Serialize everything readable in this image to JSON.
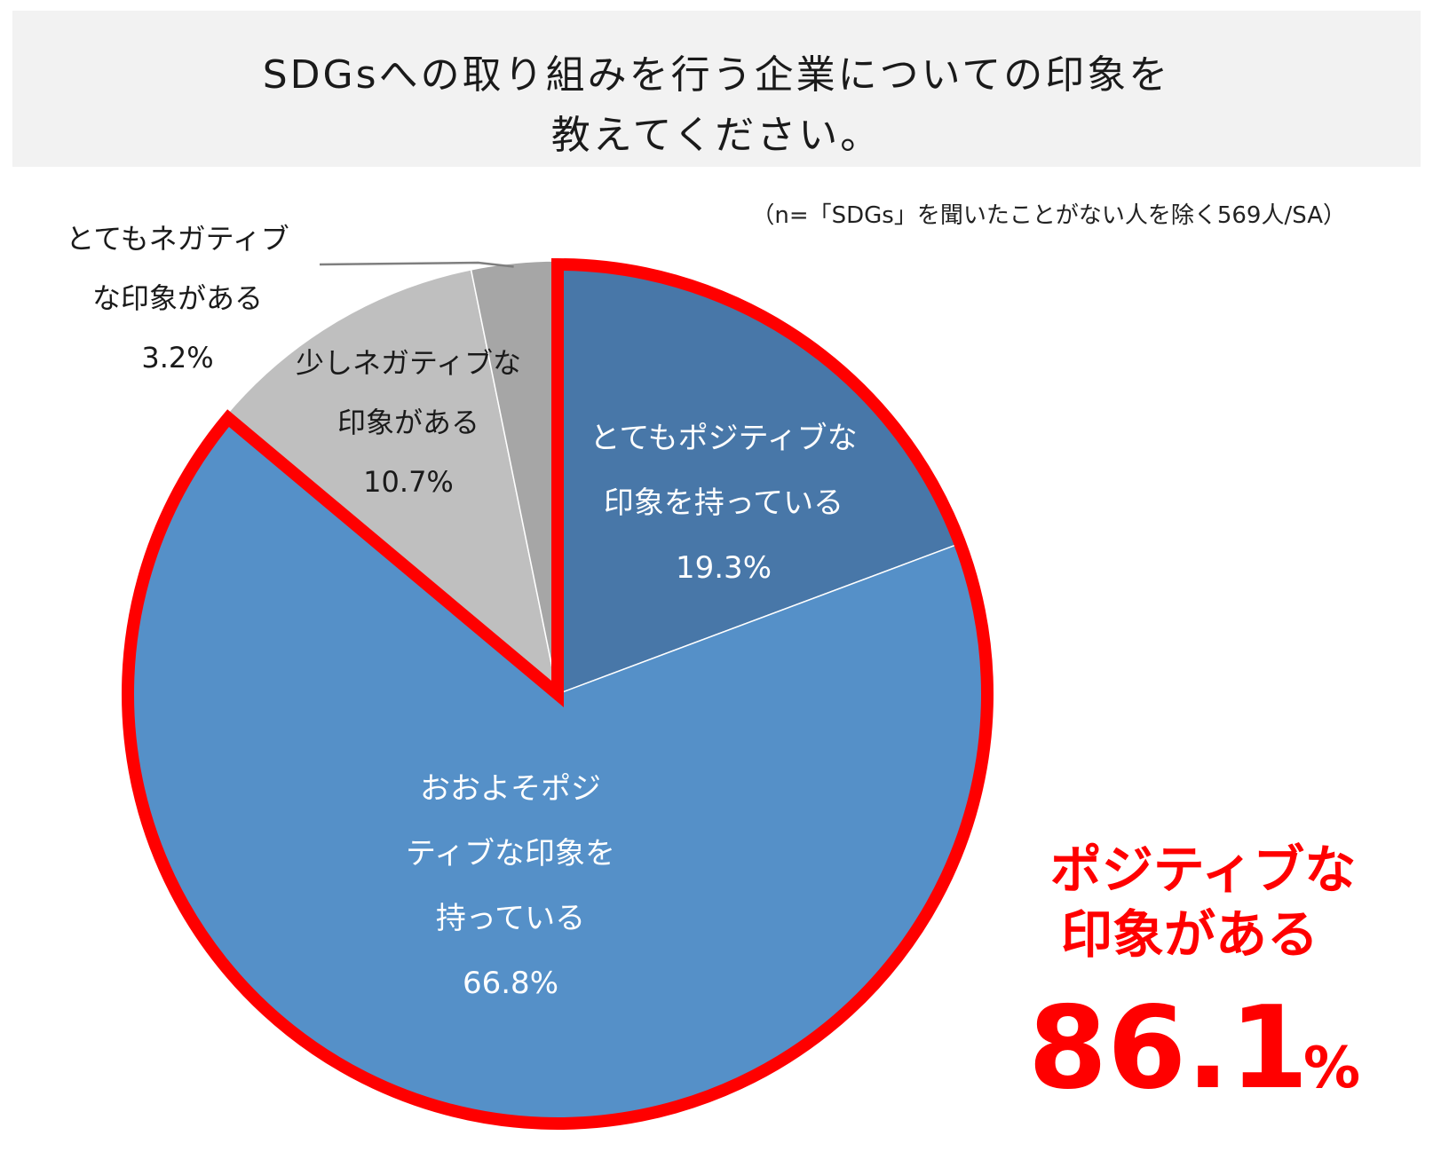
{
  "title": {
    "line1": "SDGsへの取り組みを行う企業についての印象を",
    "line2": "教えてください。"
  },
  "note": "（n=「SDGs」を聞いたことがない人を除く569人/SA）",
  "chart_data": {
    "type": "pie",
    "title": "SDGsへの取り組みを行う企業についての印象を教えてください。",
    "start": "12 o'clock, clockwise",
    "slices": [
      {
        "name": "とてもポジティブな印象を持っている",
        "label_lines": [
          "とてもポジティブな",
          "印象を持っている"
        ],
        "value": 19.3,
        "value_label": "19.3%",
        "color": "#4877a8",
        "text_color": "#ffffff"
      },
      {
        "name": "おおよそポジティブな印象を持っている",
        "label_lines": [
          "おおよそポジ",
          "ティブな印象を",
          "持っている"
        ],
        "value": 66.8,
        "value_label": "66.8%",
        "color": "#5590c8",
        "text_color": "#ffffff"
      },
      {
        "name": "少しネガティブな印象がある",
        "label_lines": [
          "少しネガティブな",
          "印象がある"
        ],
        "value": 10.7,
        "value_label": "10.7%",
        "color": "#bfbfbf",
        "text_color": "#1a1a1a"
      },
      {
        "name": "とてもネガティブな印象がある",
        "label_lines": [
          "とてもネガティブ",
          "な印象がある"
        ],
        "value": 3.2,
        "value_label": "3.2%",
        "color": "#a6a6a6",
        "text_color": "#1a1a1a"
      }
    ],
    "highlight": {
      "slices": [
        0,
        1
      ],
      "outline_color": "#ff0000",
      "callout_lines": [
        "ポジティブな",
        "印象がある"
      ],
      "callout_value": "86.1",
      "callout_unit": "%"
    }
  }
}
